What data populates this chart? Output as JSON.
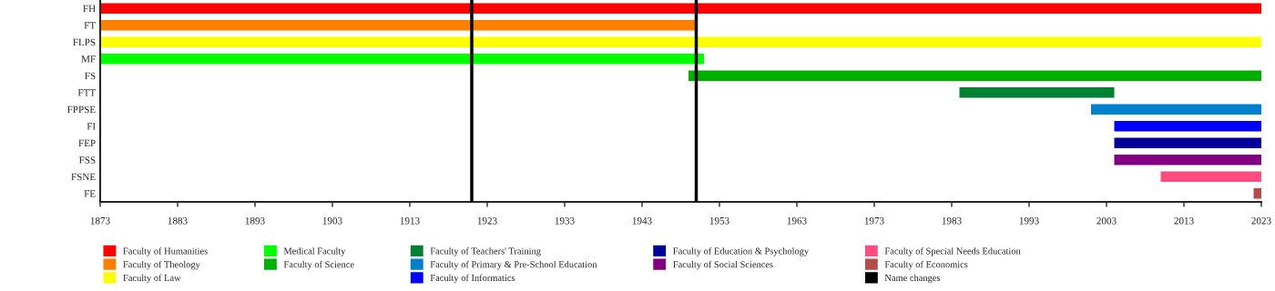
{
  "chart_data": {
    "type": "bar",
    "orientation": "horizontal",
    "categories": [
      "FH",
      "FT",
      "FLPS",
      "MF",
      "FS",
      "FTT",
      "FPPSE",
      "FI",
      "FEP",
      "FSS",
      "FSNE",
      "FE"
    ],
    "series": [
      {
        "name": "Faculty of Humanities",
        "color": "#ff0000",
        "base": [
          1873,
          null,
          null,
          null,
          null,
          null,
          null,
          null,
          null,
          null,
          null,
          null
        ],
        "values": [
          150,
          null,
          null,
          null,
          null,
          null,
          null,
          null,
          null,
          null,
          null,
          null
        ]
      },
      {
        "name": "Faculty of Theology",
        "color": "#ff8000",
        "base": [
          null,
          1873,
          null,
          null,
          null,
          null,
          null,
          null,
          null,
          null,
          null,
          null
        ],
        "values": [
          null,
          77,
          null,
          null,
          null,
          null,
          null,
          null,
          null,
          null,
          null,
          null
        ]
      },
      {
        "name": "Faculty of Law",
        "color": "#ffff00",
        "base": [
          null,
          null,
          1873,
          null,
          null,
          null,
          null,
          null,
          null,
          null,
          null,
          null
        ],
        "values": [
          null,
          null,
          150,
          null,
          null,
          null,
          null,
          null,
          null,
          null,
          null,
          null
        ]
      },
      {
        "name": "Medical Faculty",
        "color": "#00ff00",
        "base": [
          null,
          null,
          null,
          1873,
          null,
          null,
          null,
          null,
          null,
          null,
          null,
          null
        ],
        "values": [
          null,
          null,
          null,
          78,
          null,
          null,
          null,
          null,
          null,
          null,
          null,
          null
        ]
      },
      {
        "name": "Faculty of Science",
        "color": "#00b000",
        "base": [
          null,
          null,
          null,
          null,
          1949,
          null,
          null,
          null,
          null,
          null,
          null,
          null
        ],
        "values": [
          null,
          null,
          null,
          null,
          74,
          null,
          null,
          null,
          null,
          null,
          null,
          null
        ]
      },
      {
        "name": "Faculty of Teachers' Training",
        "color": "#008033",
        "base": [
          null,
          null,
          null,
          null,
          null,
          1984,
          null,
          null,
          null,
          null,
          null,
          null
        ],
        "values": [
          null,
          null,
          null,
          null,
          null,
          20,
          null,
          null,
          null,
          null,
          null,
          null
        ]
      },
      {
        "name": "Faculty of Primary & Pre-School Education",
        "color": "#0080cc",
        "base": [
          null,
          null,
          null,
          null,
          null,
          null,
          2001,
          null,
          null,
          null,
          null,
          null
        ],
        "values": [
          null,
          null,
          null,
          null,
          null,
          null,
          22,
          null,
          null,
          null,
          null,
          null
        ]
      },
      {
        "name": "Faculty of Informatics",
        "color": "#0000ff",
        "base": [
          null,
          null,
          null,
          null,
          null,
          null,
          null,
          2004,
          null,
          null,
          null,
          null
        ],
        "values": [
          null,
          null,
          null,
          null,
          null,
          null,
          null,
          19,
          null,
          null,
          null,
          null
        ]
      },
      {
        "name": "Faculty of Education & Psychology",
        "color": "#000099",
        "base": [
          null,
          null,
          null,
          null,
          null,
          null,
          null,
          null,
          2004,
          null,
          null,
          null
        ],
        "values": [
          null,
          null,
          null,
          null,
          null,
          null,
          null,
          null,
          19,
          null,
          null,
          null
        ]
      },
      {
        "name": "Faculty of Social Sciences",
        "color": "#800080",
        "base": [
          null,
          null,
          null,
          null,
          null,
          null,
          null,
          null,
          null,
          2004,
          null,
          null
        ],
        "values": [
          null,
          null,
          null,
          null,
          null,
          null,
          null,
          null,
          null,
          19,
          null,
          null
        ]
      },
      {
        "name": "Faculty of Special Needs Education",
        "color": "#ff4d80",
        "base": [
          null,
          null,
          null,
          null,
          null,
          null,
          null,
          null,
          null,
          null,
          2010,
          null
        ],
        "values": [
          null,
          null,
          null,
          null,
          null,
          null,
          null,
          null,
          null,
          null,
          13,
          null
        ]
      },
      {
        "name": "Faculty of Economics",
        "color": "#b34d4d",
        "base": [
          null,
          null,
          null,
          null,
          null,
          null,
          null,
          null,
          null,
          null,
          null,
          2022
        ],
        "values": [
          null,
          null,
          null,
          null,
          null,
          null,
          null,
          null,
          null,
          null,
          null,
          1
        ]
      }
    ],
    "ref_lines": [
      {
        "axis": "x",
        "value": 1921,
        "label": "Name changes",
        "color": "#000000"
      },
      {
        "axis": "x",
        "value": 1950,
        "color": "#000000"
      }
    ],
    "xlim": [
      1873,
      2023
    ],
    "xticks": [
      1873,
      1883,
      1893,
      1903,
      1913,
      1923,
      1933,
      1943,
      1953,
      1963,
      1973,
      1983,
      1993,
      2003,
      2013,
      2023
    ],
    "grid": false,
    "legend": "bottom"
  }
}
